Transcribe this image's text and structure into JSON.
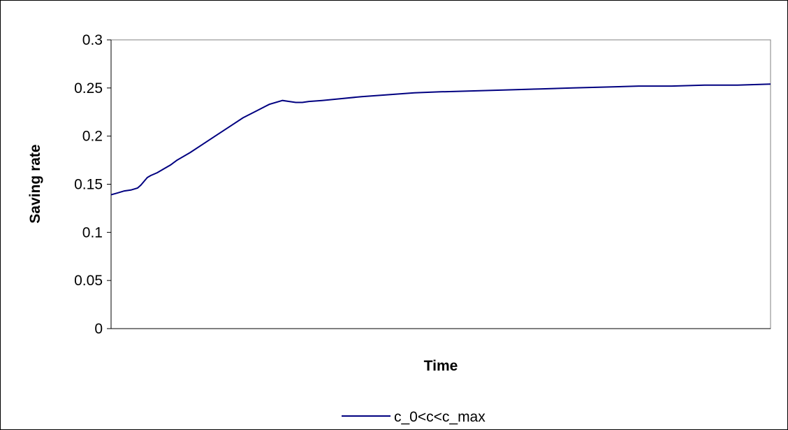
{
  "chart_data": {
    "type": "line",
    "title": "",
    "xlabel": "Time",
    "ylabel": "Saving rate",
    "ylim": [
      0,
      0.3
    ],
    "yticks": [
      "0",
      "0.05",
      "0.1",
      "0.15",
      "0.2",
      "0.25",
      "0.3"
    ],
    "ytick_values": [
      0,
      0.05,
      0.1,
      0.15,
      0.2,
      0.25,
      0.3
    ],
    "xlim": [
      0,
      100
    ],
    "grid": false,
    "legend_position": "bottom",
    "series": [
      {
        "name": "c_0<c<c_max",
        "color": "#000080",
        "x": [
          0,
          1,
          2,
          3,
          4,
          4.5,
          5,
          5.5,
          6,
          7,
          8,
          9,
          10,
          12,
          14,
          16,
          18,
          20,
          22,
          24,
          26,
          27,
          28,
          29,
          30,
          32,
          35,
          38,
          42,
          46,
          50,
          55,
          60,
          65,
          70,
          75,
          80,
          85,
          90,
          95,
          100
        ],
        "y": [
          0.139,
          0.141,
          0.143,
          0.144,
          0.146,
          0.149,
          0.153,
          0.157,
          0.159,
          0.162,
          0.166,
          0.17,
          0.175,
          0.183,
          0.192,
          0.201,
          0.21,
          0.219,
          0.226,
          0.233,
          0.237,
          0.236,
          0.235,
          0.235,
          0.236,
          0.237,
          0.239,
          0.241,
          0.243,
          0.245,
          0.246,
          0.247,
          0.248,
          0.249,
          0.25,
          0.251,
          0.252,
          0.252,
          0.253,
          0.253,
          0.254
        ]
      }
    ]
  }
}
